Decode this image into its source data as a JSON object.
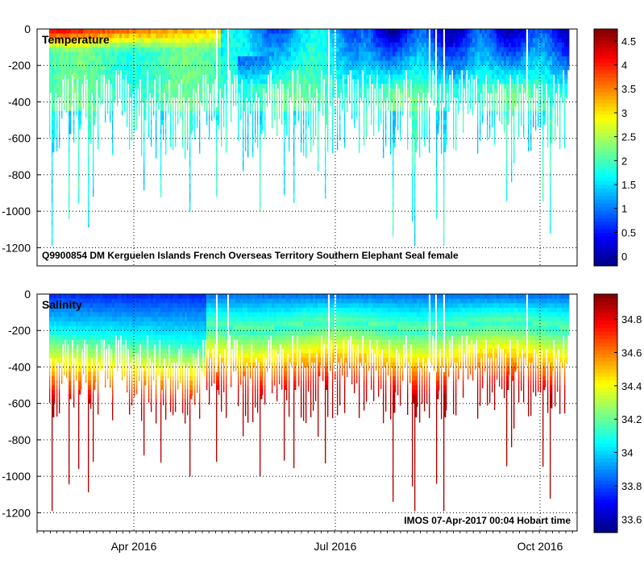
{
  "chart_data": [
    {
      "type": "heatmap",
      "variable": "Temperature",
      "title": "Temperature",
      "annotation": "Q9900854 DM Kerguelen Islands French Overseas Territory Southern Elephant Seal  female",
      "xlabel": "",
      "ylabel": "",
      "ylim": [
        -1300,
        0
      ],
      "y_ticks": [
        0,
        -200,
        -400,
        -600,
        -800,
        -1000,
        -1200
      ],
      "x_tick_labels": [],
      "colorbar": {
        "range": [
          -0.2,
          4.75
        ],
        "ticks": [
          0,
          0.5,
          1,
          1.5,
          2,
          2.5,
          3,
          3.5,
          4,
          4.5
        ],
        "colormap": "jet"
      },
      "grid": true
    },
    {
      "type": "heatmap",
      "variable": "Salinity",
      "title": "Salinity",
      "annotation": "IMOS 07-Apr-2017 00:04 Hobart time",
      "xlabel": "",
      "ylabel": "",
      "ylim": [
        -1300,
        0
      ],
      "y_ticks": [
        0,
        -200,
        -400,
        -600,
        -800,
        -1000,
        -1200
      ],
      "x_tick_labels": [
        "Apr 2016",
        "Jul 2016",
        "Oct 2016"
      ],
      "colorbar": {
        "range": [
          33.52,
          34.95
        ],
        "ticks": [
          33.6,
          33.8,
          34,
          34.2,
          34.4,
          34.6,
          34.8
        ],
        "colormap": "jet"
      },
      "grid": true
    }
  ]
}
